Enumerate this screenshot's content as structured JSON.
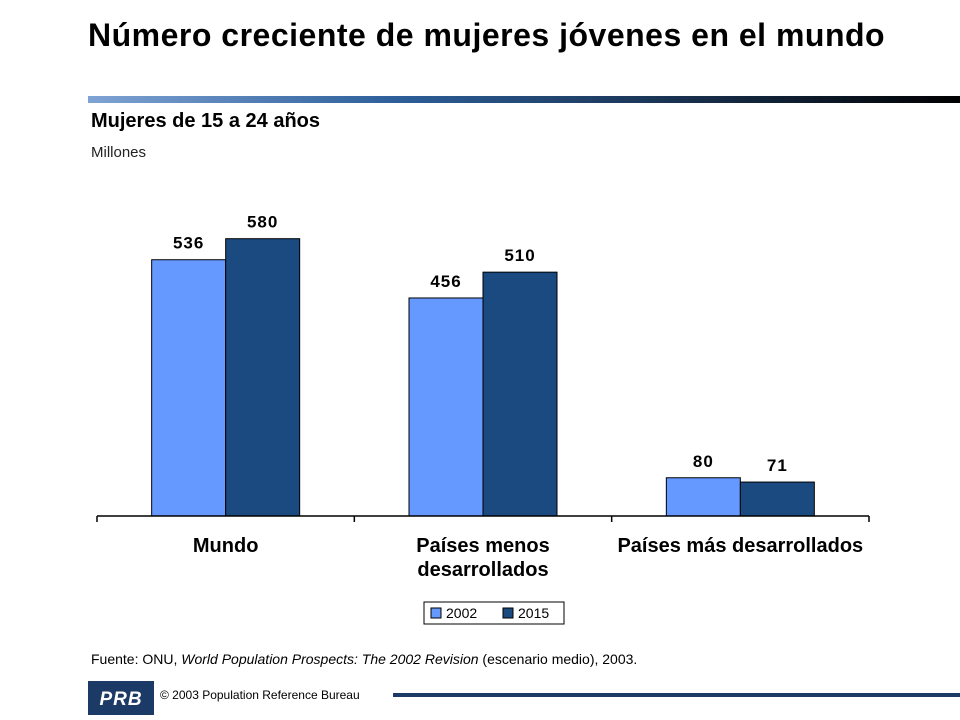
{
  "slide": {
    "title": "Número creciente de mujeres jóvenes en el mundo",
    "subtitle": "Mujeres de 15 a 24 años",
    "units": "Millones",
    "source_prefix": "Fuente: ONU, ",
    "source_italic": "World Population Prospects: The 2002 Revision",
    "source_suffix": " (escenario medio), 2003.",
    "copyright": "© 2003 Population Reference Bureau",
    "logo_text": "PRB"
  },
  "chart_data": {
    "type": "bar",
    "categories": [
      "Mundo",
      "Países menos desarrollados",
      "Países más desarrollados"
    ],
    "category_lines": [
      [
        "Mundo"
      ],
      [
        "Países menos",
        "desarrollados"
      ],
      [
        "Países más desarrollados"
      ]
    ],
    "series": [
      {
        "name": "2002",
        "values": [
          536,
          456,
          80
        ],
        "color": "#6699ff"
      },
      {
        "name": "2015",
        "values": [
          580,
          510,
          71
        ],
        "color": "#1a4a80"
      }
    ],
    "ylim": [
      0,
      640
    ],
    "legend_position": "bottom-center",
    "grid": false,
    "data_labels": true
  }
}
